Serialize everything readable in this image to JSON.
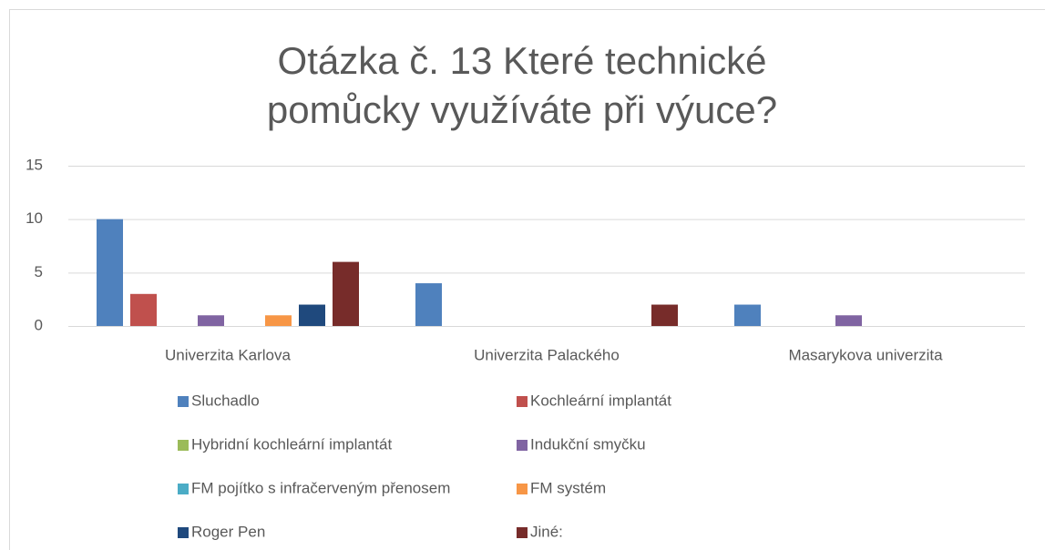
{
  "chart_data": {
    "type": "bar",
    "title": "Otázka č. 13 Které technické pomůcky využíváte při výuce?",
    "categories": [
      "Univerzita Karlova",
      "Univerzita Palackého",
      "Masarykova univerzita"
    ],
    "series": [
      {
        "name": "Sluchadlo",
        "color": "#4f81bd",
        "values": [
          10,
          4,
          2
        ]
      },
      {
        "name": "Kochleární implantát",
        "color": "#c0504d",
        "values": [
          3,
          0,
          0
        ]
      },
      {
        "name": "Hybridní kochleární implantát",
        "color": "#9bbb59",
        "values": [
          0,
          0,
          0
        ]
      },
      {
        "name": "Indukční smyčku",
        "color": "#8064a2",
        "values": [
          1,
          0,
          1
        ]
      },
      {
        "name": "FM pojítko s infračerveným přenosem",
        "color": "#4bacc6",
        "values": [
          0,
          0,
          0
        ]
      },
      {
        "name": "FM systém",
        "color": "#f79646",
        "values": [
          1,
          0,
          0
        ]
      },
      {
        "name": "Roger Pen",
        "color": "#1f497d",
        "values": [
          2,
          0,
          0
        ]
      },
      {
        "name": "Jiné:",
        "color": "#772c2a",
        "values": [
          6,
          2,
          0
        ]
      }
    ],
    "ylim": [
      0,
      15
    ],
    "yticks": [
      0,
      5,
      10,
      15
    ],
    "grid": true,
    "legend": "bottom"
  }
}
